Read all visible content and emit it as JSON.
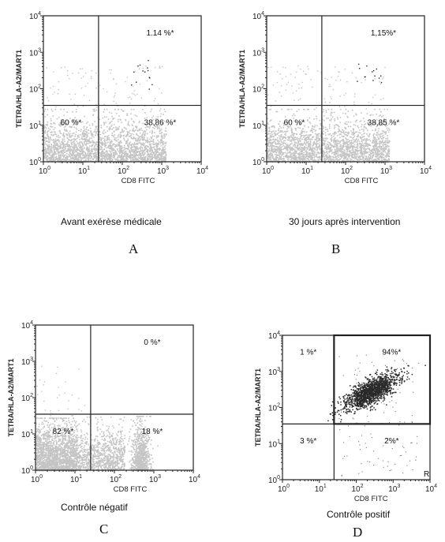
{
  "panels": [
    {
      "id": "A",
      "letter": "A",
      "caption": "Avant exérèse médicale",
      "xlabel": "CD8 FITC",
      "ylabel": "TETRA/HLA-A2/MART1",
      "x_range": [
        1,
        10000
      ],
      "y_range": [
        1,
        10000
      ],
      "x_scale": "log",
      "y_scale": "log",
      "gate": {
        "x": 25,
        "y": 35
      },
      "quadrants": {
        "upper_left": "",
        "upper_right": "1.14 %*",
        "lower_left": "60 %*",
        "lower_right": "38,86 %*"
      },
      "population": "diffuse"
    },
    {
      "id": "B",
      "letter": "B",
      "caption": "30 jours après intervention",
      "xlabel": "CD8 FITC",
      "ylabel": "TETRA/HLA-A2/MART1",
      "x_range": [
        1,
        10000
      ],
      "y_range": [
        1,
        10000
      ],
      "x_scale": "log",
      "y_scale": "log",
      "gate": {
        "x": 25,
        "y": 35
      },
      "quadrants": {
        "upper_left": "",
        "upper_right": "1,15%*",
        "lower_left": "60 %*",
        "lower_right": "38,85 %*"
      },
      "population": "diffuse"
    },
    {
      "id": "C",
      "letter": "C",
      "caption": "Contrôle négatif",
      "xlabel": "CD8 FITC",
      "ylabel": "TETRA/HLA-A2/MART1",
      "x_range": [
        1,
        10000
      ],
      "y_range": [
        1,
        10000
      ],
      "x_scale": "log",
      "y_scale": "log",
      "gate": {
        "x": 25,
        "y": 35
      },
      "quadrants": {
        "upper_left": "",
        "upper_right": "0 %*",
        "lower_left": "82 %*",
        "lower_right": "18 %*"
      },
      "population": "negative"
    },
    {
      "id": "D",
      "letter": "D",
      "caption": "Contrôle positif",
      "xlabel": "CD8 FITC",
      "ylabel": "TETRA/HLA-A2/MART1",
      "x_range": [
        1,
        10000
      ],
      "y_range": [
        1,
        10000
      ],
      "x_scale": "log",
      "y_scale": "log",
      "gate": {
        "x": 25,
        "y": 35
      },
      "quadrants": {
        "upper_left": "1 %*",
        "upper_right": "94%*",
        "lower_left": "3 %*",
        "lower_right": "2%*"
      },
      "population": "positive",
      "corner_mark": "R"
    }
  ],
  "chart_data": [
    {
      "type": "scatter",
      "id": "A",
      "xlabel": "CD8 FITC",
      "ylabel": "TETRA/HLA-A2/MART1",
      "xlim": [
        1,
        10000
      ],
      "ylim": [
        1,
        10000
      ],
      "log_x": true,
      "log_y": true,
      "quadrant_percentages": {
        "upper_left": null,
        "upper_right": 1.14,
        "lower_left": 60,
        "lower_right": 38.86
      }
    },
    {
      "type": "scatter",
      "id": "B",
      "xlabel": "CD8 FITC",
      "ylabel": "TETRA/HLA-A2/MART1",
      "xlim": [
        1,
        10000
      ],
      "ylim": [
        1,
        10000
      ],
      "log_x": true,
      "log_y": true,
      "quadrant_percentages": {
        "upper_left": null,
        "upper_right": 1.15,
        "lower_left": 60,
        "lower_right": 38.85
      }
    },
    {
      "type": "scatter",
      "id": "C",
      "xlabel": "CD8 FITC",
      "ylabel": "TETRA/HLA-A2/MART1",
      "xlim": [
        1,
        10000
      ],
      "ylim": [
        1,
        10000
      ],
      "log_x": true,
      "log_y": true,
      "quadrant_percentages": {
        "upper_left": null,
        "upper_right": 0,
        "lower_left": 82,
        "lower_right": 18
      }
    },
    {
      "type": "scatter",
      "id": "D",
      "xlabel": "CD8 FITC",
      "ylabel": "TETRA/HLA-A2/MART1",
      "xlim": [
        1,
        10000
      ],
      "ylim": [
        1,
        10000
      ],
      "log_x": true,
      "log_y": true,
      "quadrant_percentages": {
        "upper_left": 1,
        "upper_right": 94,
        "lower_left": 3,
        "lower_right": 2
      }
    }
  ],
  "colors": {
    "negative_cells": "#c4c4c4",
    "positive_cells": "#2a2a2a",
    "frame": "#222222"
  }
}
